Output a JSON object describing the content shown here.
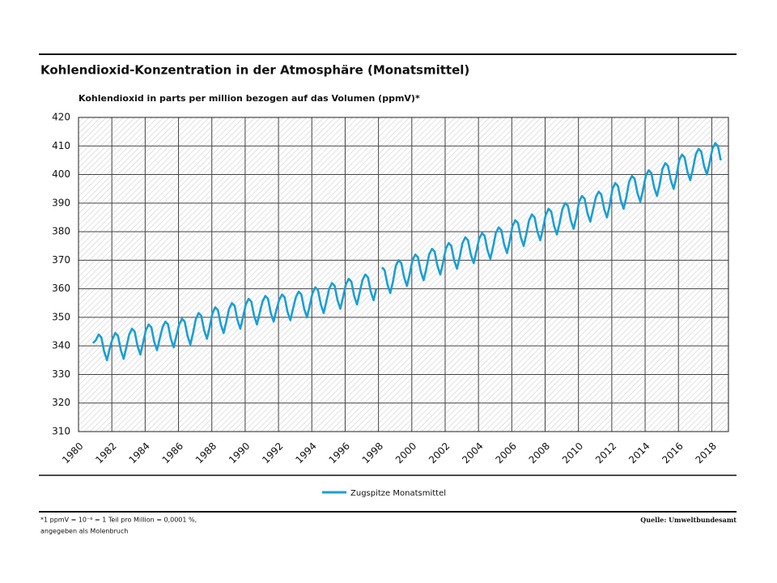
{
  "chart_data": {
    "type": "line",
    "title": "Kohlendioxid-Konzentration in der Atmosphäre (Monatsmittel)",
    "y_label": "Kohlendioxid in parts per million bezogen auf das Volumen (ppmV)*",
    "footnote": [
      "*1 ppmV = 10⁻⁶ = 1 Teil pro Million = 0,0001 %,",
      "angegeben als Molenbruch"
    ],
    "source": "Quelle: Umweltbundesamt",
    "xlim": [
      1980,
      2019
    ],
    "xticks": [
      1980,
      1982,
      1984,
      1986,
      1988,
      1990,
      1992,
      1994,
      1996,
      1998,
      2000,
      2002,
      2004,
      2006,
      2008,
      2010,
      2012,
      2014,
      2016,
      2018
    ],
    "ylim": [
      310,
      420
    ],
    "yticks": [
      310,
      320,
      330,
      340,
      350,
      360,
      370,
      380,
      390,
      400,
      410,
      420
    ],
    "grid": true,
    "x": [
      1980.87,
      1981.04,
      1981.21,
      1981.37,
      1981.54,
      1981.71,
      1981.87,
      1982.04,
      1982.21,
      1982.37,
      1982.54,
      1982.71,
      1982.87,
      1983.04,
      1983.21,
      1983.37,
      1983.54,
      1983.71,
      1983.87,
      1984.04,
      1984.21,
      1984.37,
      1984.54,
      1984.71,
      1984.87,
      1985.04,
      1985.21,
      1985.37,
      1985.54,
      1985.71,
      1985.87,
      1986.04,
      1986.21,
      1986.37,
      1986.54,
      1986.71,
      1986.87,
      1987.04,
      1987.21,
      1987.37,
      1987.54,
      1987.71,
      1987.87,
      1988.04,
      1988.21,
      1988.37,
      1988.54,
      1988.71,
      1988.87,
      1989.04,
      1989.21,
      1989.37,
      1989.54,
      1989.71,
      1989.87,
      1990.04,
      1990.21,
      1990.37,
      1990.54,
      1990.71,
      1990.87,
      1991.04,
      1991.21,
      1991.37,
      1991.54,
      1991.71,
      1991.87,
      1992.04,
      1992.21,
      1992.37,
      1992.54,
      1992.71,
      1992.87,
      1993.04,
      1993.21,
      1993.37,
      1993.54,
      1993.71,
      1993.87,
      1994.04,
      1994.21,
      1994.37,
      1994.54,
      1994.71,
      1994.87,
      1995.04,
      1995.21,
      1995.37,
      1995.54,
      1995.71,
      1995.87,
      1996.04,
      1996.21,
      1996.37,
      1996.54,
      1996.71,
      1996.87,
      1997.04,
      1997.21,
      1997.37,
      1997.54,
      1997.71,
      1997.87,
      1998.04,
      1998.21,
      1998.37,
      1998.54,
      1998.71,
      1998.87,
      1999.04,
      1999.21,
      1999.37,
      1999.54,
      1999.71,
      1999.87,
      2000.04,
      2000.21,
      2000.37,
      2000.54,
      2000.71,
      2000.87,
      2001.04,
      2001.21,
      2001.37,
      2001.54,
      2001.71,
      2001.87,
      2002.04,
      2002.21,
      2002.37,
      2002.54,
      2002.71,
      2002.87,
      2003.04,
      2003.21,
      2003.37,
      2003.54,
      2003.71,
      2003.87,
      2004.04,
      2004.21,
      2004.37,
      2004.54,
      2004.71,
      2004.87,
      2005.04,
      2005.21,
      2005.37,
      2005.54,
      2005.71,
      2005.87,
      2006.04,
      2006.21,
      2006.37,
      2006.54,
      2006.71,
      2006.87,
      2007.04,
      2007.21,
      2007.37,
      2007.54,
      2007.71,
      2007.87,
      2008.04,
      2008.21,
      2008.37,
      2008.54,
      2008.71,
      2008.87,
      2009.04,
      2009.21,
      2009.37,
      2009.54,
      2009.71,
      2009.87,
      2010.04,
      2010.21,
      2010.37,
      2010.54,
      2010.71,
      2010.87,
      2011.04,
      2011.21,
      2011.37,
      2011.54,
      2011.71,
      2011.87,
      2012.04,
      2012.21,
      2012.37,
      2012.54,
      2012.71,
      2012.87,
      2013.04,
      2013.21,
      2013.37,
      2013.54,
      2013.71,
      2013.87,
      2014.04,
      2014.21,
      2014.37,
      2014.54,
      2014.71,
      2014.87,
      2015.04,
      2015.21,
      2015.37,
      2015.54,
      2015.71,
      2015.87,
      2016.04,
      2016.21,
      2016.37,
      2016.54,
      2016.71,
      2016.87,
      2017.04,
      2017.21,
      2017.37,
      2017.54,
      2017.71,
      2017.87,
      2018.04,
      2018.21,
      2018.37,
      2018.54
    ],
    "series": [
      {
        "name": "Zugspitze Monatsmittel",
        "color": "#1a9fd4",
        "values": [
          341,
          342,
          344,
          343,
          338,
          335,
          339,
          342.5,
          344.5,
          343.5,
          338.5,
          335.5,
          339.5,
          344,
          346,
          345,
          340,
          337,
          341,
          345.5,
          347.5,
          346.5,
          341.5,
          338.5,
          342.5,
          346.5,
          348.5,
          347.5,
          342.5,
          339.5,
          343.5,
          347.5,
          349.5,
          348.5,
          343.5,
          340.5,
          344.5,
          349.5,
          351.5,
          350.5,
          345.5,
          342.5,
          346.5,
          351.5,
          353.5,
          352.5,
          347.5,
          344.5,
          348.5,
          353,
          355,
          354,
          349,
          346,
          350,
          354.5,
          356.5,
          355.5,
          350.5,
          347.5,
          351.5,
          355.5,
          357.5,
          356.5,
          351.5,
          348.5,
          352.5,
          356,
          358,
          357,
          352,
          349,
          353,
          357,
          359,
          358,
          353,
          350,
          354,
          358.5,
          360.5,
          359.5,
          354.5,
          351.5,
          355.5,
          360,
          362,
          361,
          356,
          353,
          357,
          361.5,
          363.5,
          362.5,
          357.5,
          354.5,
          358.5,
          363,
          365,
          364,
          359,
          356,
          360,
          null,
          367.5,
          366.5,
          361.5,
          358.5,
          362.5,
          368,
          370,
          369,
          364,
          361,
          365,
          370,
          372,
          371,
          366,
          363,
          367,
          372,
          374,
          373,
          368,
          365,
          369,
          374,
          376,
          375,
          370,
          367,
          371,
          376,
          378,
          377,
          372,
          369,
          373,
          377.5,
          379.5,
          378.5,
          373.5,
          370.5,
          374.5,
          379.5,
          381.5,
          380.5,
          375.5,
          372.5,
          376.5,
          382,
          384,
          383,
          378,
          375,
          379,
          384,
          386,
          385,
          380,
          377,
          381,
          386,
          388,
          387,
          382,
          379,
          383,
          388,
          390,
          389,
          384,
          381,
          385,
          390.5,
          392.5,
          391.5,
          386.5,
          383.5,
          387.5,
          392,
          394,
          393,
          388,
          385,
          389,
          395,
          397,
          396,
          391,
          388,
          392,
          397.5,
          399.5,
          398.5,
          393.5,
          390.5,
          394.5,
          399.5,
          401.5,
          400.5,
          395.5,
          392.5,
          396.5,
          402,
          404,
          403,
          398,
          395,
          399,
          405,
          407,
          406,
          401,
          398,
          402,
          407,
          409,
          408,
          403,
          400,
          404,
          409,
          411,
          410,
          405
        ]
      }
    ]
  }
}
